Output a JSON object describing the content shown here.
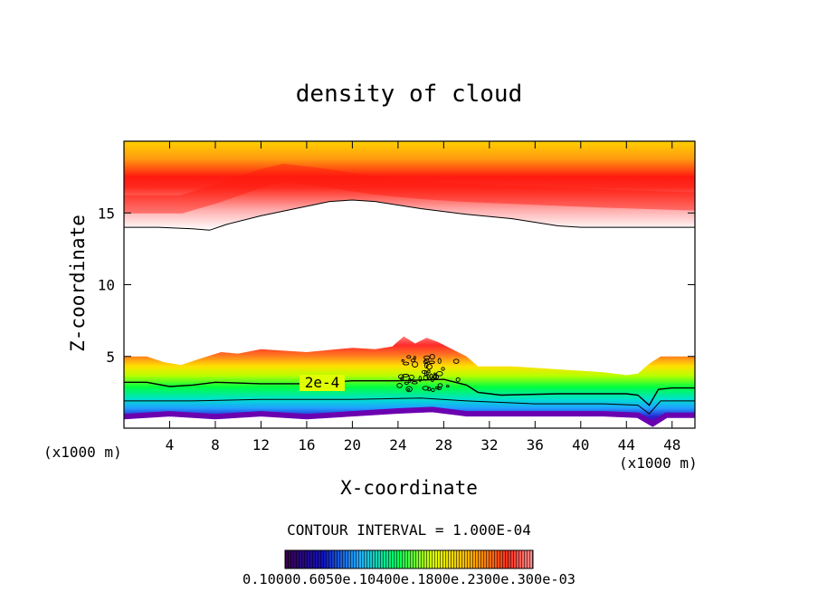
{
  "chart_data": {
    "type": "heatmap",
    "title": "density of cloud",
    "xlabel": "X-coordinate",
    "ylabel": "Z-coordinate",
    "x_unit_left": "(x1000 m)",
    "x_unit_right": "(x1000 m)",
    "xlim": [
      0,
      50
    ],
    "ylim": [
      0,
      20
    ],
    "x_ticks": [
      {
        "value": 4,
        "label": "4"
      },
      {
        "value": 8,
        "label": "8"
      },
      {
        "value": 12,
        "label": "12"
      },
      {
        "value": 16,
        "label": "16"
      },
      {
        "value": 20,
        "label": "20"
      },
      {
        "value": 24,
        "label": "24"
      },
      {
        "value": 28,
        "label": "28"
      },
      {
        "value": 32,
        "label": "32"
      },
      {
        "value": 36,
        "label": "36"
      },
      {
        "value": 40,
        "label": "40"
      },
      {
        "value": 44,
        "label": "44"
      },
      {
        "value": 48,
        "label": "48"
      }
    ],
    "y_ticks": [
      {
        "value": 5,
        "label": "5"
      },
      {
        "value": 10,
        "label": "10"
      },
      {
        "value": 15,
        "label": "15"
      }
    ],
    "contour_interval_text": "CONTOUR INTERVAL = 1.000E-04",
    "contour_label": "2e-4",
    "colorbar_labels_text": "0.10000.6050e.10400e.1800e.2300e.300e-03",
    "upper_layer": {
      "bottom": [
        [
          0,
          14
        ],
        [
          3,
          14
        ],
        [
          6,
          13.9
        ],
        [
          7.5,
          13.8
        ],
        [
          9,
          14.2
        ],
        [
          12,
          14.8
        ],
        [
          15,
          15.3
        ],
        [
          18,
          15.8
        ],
        [
          20,
          15.9
        ],
        [
          22,
          15.8
        ],
        [
          26,
          15.3
        ],
        [
          30,
          14.9
        ],
        [
          34,
          14.6
        ],
        [
          38,
          14.1
        ],
        [
          40,
          14.0
        ],
        [
          44,
          14.0
        ],
        [
          47,
          14.0
        ],
        [
          50,
          14.0
        ]
      ],
      "band_z_at_x": [
        [
          0,
          15.6
        ],
        [
          5,
          15.6
        ],
        [
          8,
          16.3
        ],
        [
          12,
          17.4
        ],
        [
          14,
          17.8
        ],
        [
          18,
          17.4
        ],
        [
          22,
          16.9
        ],
        [
          26,
          16.6
        ],
        [
          30,
          16.4
        ],
        [
          36,
          16.2
        ],
        [
          42,
          16.0
        ],
        [
          50,
          15.8
        ]
      ]
    },
    "lower_layer": {
      "top": [
        [
          0,
          5.0
        ],
        [
          2,
          5.0
        ],
        [
          3.5,
          4.6
        ],
        [
          5,
          4.4
        ],
        [
          6.5,
          4.8
        ],
        [
          8.5,
          5.3
        ],
        [
          10,
          5.2
        ],
        [
          12,
          5.5
        ],
        [
          16,
          5.3
        ],
        [
          20,
          5.6
        ],
        [
          22,
          5.5
        ],
        [
          23.5,
          5.7
        ],
        [
          24.5,
          6.4
        ],
        [
          25.5,
          5.9
        ],
        [
          26.5,
          6.3
        ],
        [
          27.5,
          6.0
        ],
        [
          28.5,
          5.6
        ],
        [
          30,
          5.0
        ],
        [
          31,
          4.3
        ],
        [
          34,
          4.3
        ],
        [
          38,
          4.1
        ],
        [
          42,
          3.9
        ],
        [
          44,
          3.7
        ],
        [
          45,
          3.8
        ],
        [
          46,
          4.5
        ],
        [
          47,
          5.0
        ],
        [
          48,
          5.0
        ],
        [
          50,
          5.0
        ]
      ],
      "contour_2e4": [
        [
          0,
          3.2
        ],
        [
          2,
          3.2
        ],
        [
          4,
          2.9
        ],
        [
          6,
          3.0
        ],
        [
          8,
          3.2
        ],
        [
          12,
          3.1
        ],
        [
          16,
          3.1
        ],
        [
          20,
          3.3
        ],
        [
          24,
          3.3
        ],
        [
          28,
          3.4
        ],
        [
          30,
          3.0
        ],
        [
          31,
          2.5
        ],
        [
          33,
          2.3
        ],
        [
          38,
          2.4
        ],
        [
          42,
          2.4
        ],
        [
          44,
          2.4
        ],
        [
          45,
          2.3
        ],
        [
          46,
          1.6
        ],
        [
          46.8,
          2.7
        ],
        [
          48,
          2.8
        ],
        [
          50,
          2.8
        ]
      ],
      "contour_low": [
        [
          0,
          1.9
        ],
        [
          6,
          1.9
        ],
        [
          12,
          2.0
        ],
        [
          20,
          2.0
        ],
        [
          26,
          2.1
        ],
        [
          30,
          1.9
        ],
        [
          36,
          1.7
        ],
        [
          42,
          1.7
        ],
        [
          45,
          1.6
        ],
        [
          46,
          1.0
        ],
        [
          47,
          1.9
        ],
        [
          50,
          1.9
        ]
      ],
      "base": [
        [
          0,
          0.8
        ],
        [
          4,
          1.0
        ],
        [
          8,
          0.8
        ],
        [
          12,
          1.0
        ],
        [
          16,
          0.8
        ],
        [
          20,
          1.0
        ],
        [
          24,
          1.2
        ],
        [
          27,
          1.3
        ],
        [
          30,
          1.0
        ],
        [
          34,
          1.0
        ],
        [
          38,
          1.0
        ],
        [
          42,
          1.0
        ],
        [
          45,
          0.9
        ],
        [
          46.3,
          0.3
        ],
        [
          47.5,
          0.9
        ],
        [
          50,
          0.9
        ]
      ]
    },
    "legend": "bottom-center colorbar",
    "grid": false
  }
}
